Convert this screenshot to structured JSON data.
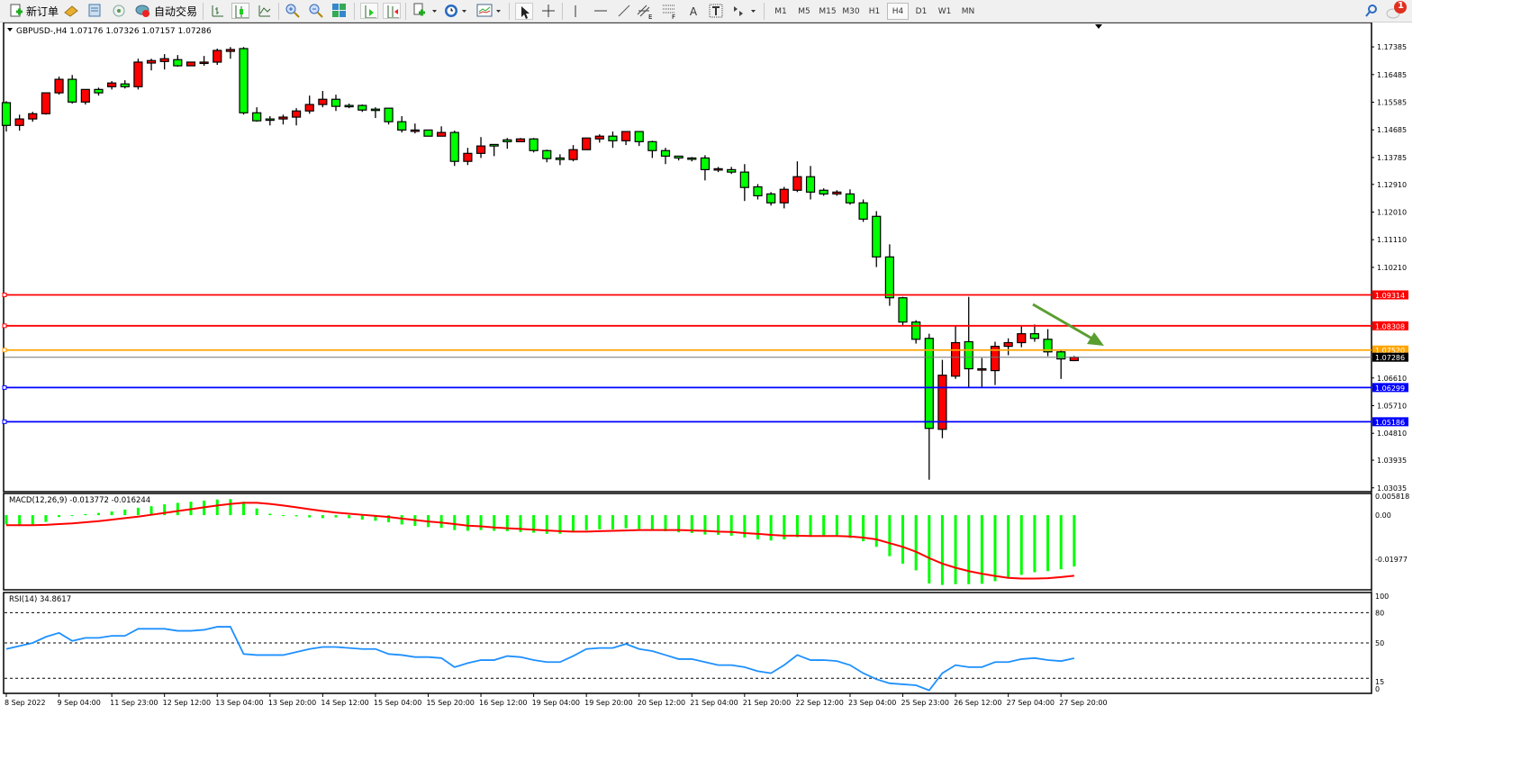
{
  "toolbar": {
    "new_order_label": "新订单",
    "auto_trade_label": "自动交易",
    "timeframes": [
      "M1",
      "M5",
      "M15",
      "M30",
      "H1",
      "H4",
      "D1",
      "W1",
      "MN"
    ],
    "active_timeframe": "H4",
    "notification_count": "1",
    "text_tool_label": "A"
  },
  "chart": {
    "header": "GBPUSD-,H4  1.07176 1.07326 1.07157 1.07286",
    "macd_label": "MACD(12,26,9) -0.013772 -0.016244",
    "rsi_label": "RSI(14) 34.8617"
  },
  "colors": {
    "bull": "#ff0000",
    "bear": "#00ff00",
    "macd_hist": "#00ff00",
    "macd_signal": "#ff0000",
    "rsi_line": "#1e90ff",
    "arrow": "#5a9e2f"
  },
  "chart_data": [
    {
      "type": "candlestick",
      "symbol": "GBPUSD-",
      "timeframe": "H4",
      "ylim": [
        1.0294,
        1.1812
      ],
      "price_ticks": [
        "1.17385",
        "1.16485",
        "1.15585",
        "1.14685",
        "1.13785",
        "1.12910",
        "1.12010",
        "1.11110",
        "1.10210",
        "1.06610",
        "1.05710",
        "1.04810",
        "1.03935",
        "1.03035"
      ],
      "x_tick_labels": [
        "8 Sep 2022",
        "9 Sep 04:00",
        "11 Sep 23:00",
        "12 Sep 12:00",
        "13 Sep 04:00",
        "13 Sep 20:00",
        "14 Sep 12:00",
        "15 Sep 04:00",
        "15 Sep 20:00",
        "16 Sep 12:00",
        "19 Sep 04:00",
        "19 Sep 20:00",
        "20 Sep 12:00",
        "21 Sep 04:00",
        "21 Sep 20:00",
        "22 Sep 12:00",
        "23 Sep 04:00",
        "25 Sep 23:00",
        "26 Sep 12:00",
        "27 Sep 04:00",
        "27 Sep 20:00"
      ],
      "ohlc": [
        [
          1.1557,
          1.1562,
          1.1463,
          1.1483
        ],
        [
          1.1483,
          1.1518,
          1.1466,
          1.1504
        ],
        [
          1.1504,
          1.1527,
          1.1495,
          1.1521
        ],
        [
          1.1521,
          1.1589,
          1.1518,
          1.1589
        ],
        [
          1.1589,
          1.1642,
          1.1583,
          1.1633
        ],
        [
          1.1633,
          1.1647,
          1.1554,
          1.1559
        ],
        [
          1.1559,
          1.16,
          1.1551,
          1.16
        ],
        [
          1.16,
          1.1606,
          1.158,
          1.1589
        ],
        [
          1.1609,
          1.1627,
          1.16,
          1.1621
        ],
        [
          1.1618,
          1.163,
          1.1603,
          1.1609
        ],
        [
          1.1609,
          1.17,
          1.16,
          1.1689
        ],
        [
          1.1686,
          1.17,
          1.1662,
          1.1694
        ],
        [
          1.1691,
          1.1715,
          1.1665,
          1.17
        ],
        [
          1.1697,
          1.1712,
          1.1674,
          1.1677
        ],
        [
          1.1677,
          1.1689,
          1.1677,
          1.1689
        ],
        [
          1.1689,
          1.1709,
          1.1677,
          1.1689
        ],
        [
          1.1689,
          1.1733,
          1.168,
          1.1727
        ],
        [
          1.1724,
          1.1738,
          1.17,
          1.173
        ],
        [
          1.1733,
          1.1738,
          1.1518,
          1.1524
        ],
        [
          1.1524,
          1.1542,
          1.1495,
          1.1498
        ],
        [
          1.1504,
          1.1513,
          1.1483,
          1.1501
        ],
        [
          1.1504,
          1.1518,
          1.1486,
          1.151
        ],
        [
          1.151,
          1.1539,
          1.1483,
          1.153
        ],
        [
          1.153,
          1.158,
          1.1521,
          1.1551
        ],
        [
          1.1551,
          1.1595,
          1.1542,
          1.1568
        ],
        [
          1.1568,
          1.1583,
          1.153,
          1.1545
        ],
        [
          1.1548,
          1.1554,
          1.1539,
          1.1545
        ],
        [
          1.1548,
          1.1551,
          1.1527,
          1.1533
        ],
        [
          1.1536,
          1.1542,
          1.1507,
          1.1533
        ],
        [
          1.1539,
          1.1539,
          1.1486,
          1.1495
        ],
        [
          1.1495,
          1.1513,
          1.146,
          1.1468
        ],
        [
          1.1468,
          1.1489,
          1.1457,
          1.1468
        ],
        [
          1.1468,
          1.1468,
          1.1448,
          1.1448
        ],
        [
          1.1448,
          1.148,
          1.1448,
          1.146
        ],
        [
          1.146,
          1.1466,
          1.1351,
          1.1366
        ],
        [
          1.1366,
          1.141,
          1.1354,
          1.1392
        ],
        [
          1.1392,
          1.1445,
          1.1377,
          1.1416
        ],
        [
          1.1421,
          1.1421,
          1.1383,
          1.1416
        ],
        [
          1.1436,
          1.1442,
          1.1407,
          1.143
        ],
        [
          1.143,
          1.1442,
          1.143,
          1.1439
        ],
        [
          1.1439,
          1.1442,
          1.1395,
          1.1401
        ],
        [
          1.1401,
          1.1404,
          1.1363,
          1.1375
        ],
        [
          1.1377,
          1.1389,
          1.1354,
          1.1372
        ],
        [
          1.1372,
          1.1419,
          1.1366,
          1.1404
        ],
        [
          1.1404,
          1.1442,
          1.1404,
          1.1442
        ],
        [
          1.1439,
          1.1454,
          1.1427,
          1.1448
        ],
        [
          1.1448,
          1.1463,
          1.141,
          1.1433
        ],
        [
          1.1433,
          1.1463,
          1.1419,
          1.1463
        ],
        [
          1.1463,
          1.1463,
          1.1416,
          1.143
        ],
        [
          1.143,
          1.1433,
          1.1377,
          1.1401
        ],
        [
          1.1401,
          1.141,
          1.1357,
          1.1383
        ],
        [
          1.1383,
          1.1383,
          1.1369,
          1.1377
        ],
        [
          1.1377,
          1.138,
          1.1366,
          1.1375
        ],
        [
          1.1377,
          1.1386,
          1.1304,
          1.1339
        ],
        [
          1.1342,
          1.1348,
          1.1331,
          1.1342
        ],
        [
          1.1339,
          1.1348,
          1.1325,
          1.1331
        ],
        [
          1.1331,
          1.1357,
          1.1237,
          1.1281
        ],
        [
          1.1283,
          1.1292,
          1.1242,
          1.1254
        ],
        [
          1.126,
          1.1266,
          1.1222,
          1.1231
        ],
        [
          1.1231,
          1.1283,
          1.1213,
          1.1275
        ],
        [
          1.1272,
          1.1366,
          1.1266,
          1.1316
        ],
        [
          1.1316,
          1.1351,
          1.1242,
          1.1266
        ],
        [
          1.1272,
          1.1278,
          1.1254,
          1.126
        ],
        [
          1.126,
          1.1272,
          1.1254,
          1.1266
        ],
        [
          1.126,
          1.1275,
          1.1225,
          1.1231
        ],
        [
          1.1231,
          1.1242,
          1.1169,
          1.1178
        ],
        [
          1.1187,
          1.1204,
          1.1022,
          1.1055
        ],
        [
          1.1055,
          1.1096,
          1.0896,
          1.0922
        ],
        [
          1.0922,
          1.0925,
          1.0832,
          1.0843
        ],
        [
          1.0843,
          1.0849,
          1.0773,
          1.0787
        ],
        [
          1.079,
          1.0805,
          1.033,
          1.0497
        ],
        [
          1.0494,
          1.072,
          1.0465,
          1.067
        ],
        [
          1.0667,
          1.0832,
          1.0658,
          1.0776
        ],
        [
          1.0779,
          1.0925,
          1.0632,
          1.0691
        ],
        [
          1.0691,
          1.0726,
          1.0632,
          1.0691
        ],
        [
          1.0685,
          1.0779,
          1.0638,
          1.0764
        ],
        [
          1.0764,
          1.079,
          1.0735,
          1.0776
        ],
        [
          1.0776,
          1.0832,
          1.0761,
          1.0805
        ],
        [
          1.0805,
          1.0835,
          1.0779,
          1.079
        ],
        [
          1.0787,
          1.082,
          1.0732,
          1.0746
        ],
        [
          1.0746,
          1.0752,
          1.0658,
          1.0723
        ],
        [
          1.07176,
          1.07326,
          1.07157,
          1.07286
        ]
      ],
      "horizontal_lines": [
        {
          "price": "1.09314",
          "color": "#ff0000"
        },
        {
          "price": "1.08308",
          "color": "#ff0000"
        },
        {
          "price": "1.07520",
          "color": "#ffa500"
        },
        {
          "price": "1.07286",
          "color": "#000000",
          "current": true
        },
        {
          "price": "1.06299",
          "color": "#0000ff"
        },
        {
          "price": "1.05186",
          "color": "#0000ff"
        }
      ]
    },
    {
      "type": "bar+line",
      "name": "MACD(12,26,9)",
      "ylim": [
        -0.01977,
        0.005818
      ],
      "tick_labels": [
        "0.005818",
        "0.00",
        "-0.01977"
      ],
      "histogram": [
        -0.0025,
        -0.0025,
        -0.0025,
        -0.0018,
        -0.0005,
        -0.0002,
        0.0003,
        0.0006,
        0.001,
        0.0015,
        0.002,
        0.0024,
        0.0029,
        0.0033,
        0.0036,
        0.0039,
        0.0042,
        0.0043,
        0.0036,
        0.0018,
        0.0004,
        -0.0002,
        -0.0003,
        -0.0006,
        -0.0008,
        -0.0006,
        -0.0008,
        -0.0012,
        -0.0015,
        -0.0019,
        -0.0025,
        -0.0029,
        -0.0032,
        -0.0034,
        -0.004,
        -0.0042,
        -0.004,
        -0.0042,
        -0.0043,
        -0.0045,
        -0.0047,
        -0.005,
        -0.005,
        -0.0046,
        -0.004,
        -0.0038,
        -0.0038,
        -0.0035,
        -0.0037,
        -0.004,
        -0.0043,
        -0.0046,
        -0.0048,
        -0.0052,
        -0.0053,
        -0.0055,
        -0.006,
        -0.0065,
        -0.0068,
        -0.0065,
        -0.0059,
        -0.0058,
        -0.0058,
        -0.0057,
        -0.0061,
        -0.007,
        -0.0085,
        -0.011,
        -0.013,
        -0.0148,
        -0.0183,
        -0.0187,
        -0.0185,
        -0.0185,
        -0.0184,
        -0.0177,
        -0.017,
        -0.016,
        -0.0153,
        -0.015,
        -0.0145,
        -0.013772
      ],
      "signal": [
        -0.0027,
        -0.0027,
        -0.0027,
        -0.0026,
        -0.0024,
        -0.0022,
        -0.0019,
        -0.0016,
        -0.0012,
        -0.0008,
        -0.0004,
        0.0001,
        0.0006,
        0.0011,
        0.0016,
        0.0021,
        0.0026,
        0.003,
        0.0033,
        0.0033,
        0.003,
        0.0026,
        0.0021,
        0.0016,
        0.0011,
        0.0007,
        0.0004,
        0.0001,
        -0.0002,
        -0.0005,
        -0.0009,
        -0.0013,
        -0.0017,
        -0.002,
        -0.0024,
        -0.0028,
        -0.003,
        -0.0033,
        -0.0035,
        -0.0037,
        -0.0039,
        -0.0041,
        -0.0043,
        -0.0044,
        -0.0044,
        -0.0043,
        -0.0042,
        -0.0041,
        -0.004,
        -0.004,
        -0.004,
        -0.004,
        -0.0041,
        -0.0042,
        -0.0044,
        -0.0045,
        -0.0048,
        -0.005,
        -0.0053,
        -0.0055,
        -0.0055,
        -0.0056,
        -0.0056,
        -0.0056,
        -0.0057,
        -0.006,
        -0.0065,
        -0.0075,
        -0.0085,
        -0.0098,
        -0.0115,
        -0.013,
        -0.0141,
        -0.015,
        -0.0157,
        -0.0163,
        -0.0168,
        -0.017,
        -0.017,
        -0.0169,
        -0.0166,
        -0.016244
      ]
    },
    {
      "type": "line",
      "name": "RSI(14)",
      "ylim": [
        0,
        100
      ],
      "tick_labels": [
        "100",
        "80",
        "50",
        "15",
        "0"
      ],
      "levels": [
        80,
        50,
        15
      ],
      "values": [
        44,
        47,
        50,
        56,
        60,
        52,
        55,
        55,
        57,
        57,
        64,
        64,
        64,
        62,
        62,
        63,
        66,
        66,
        39,
        38,
        38,
        38,
        41,
        44,
        46,
        46,
        45,
        44,
        44,
        39,
        38,
        36,
        36,
        35,
        26,
        30,
        33,
        33,
        37,
        36,
        33,
        31,
        31,
        37,
        44,
        45,
        45,
        49,
        44,
        42,
        38,
        34,
        34,
        31,
        28,
        28,
        26,
        22,
        20,
        28,
        38,
        33,
        33,
        32,
        28,
        20,
        14,
        10,
        9,
        8,
        3,
        20,
        28,
        26,
        26,
        31,
        31,
        34,
        35,
        33,
        32,
        34.8617
      ]
    }
  ]
}
